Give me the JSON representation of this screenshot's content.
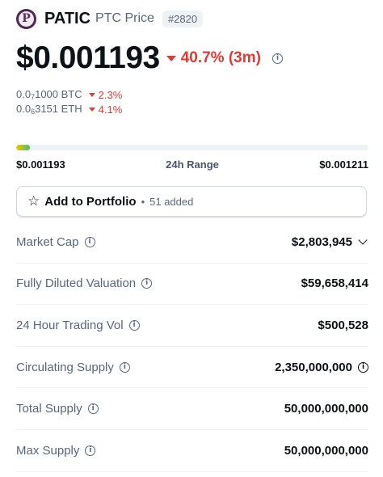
{
  "header": {
    "logo_letter": "P",
    "name": "PATIC",
    "subtitle": "PTC Price",
    "rank": "#2820"
  },
  "price": {
    "value": "$0.001193",
    "change": "40.7% (3m)",
    "change_direction": "down",
    "change_color": "#e53935"
  },
  "sub_prices": [
    {
      "prefix": "0.0",
      "zeros": "7",
      "rest": "1000 BTC",
      "change": "2.3%"
    },
    {
      "prefix": "0.0",
      "zeros": "6",
      "rest": "3151 ETH",
      "change": "4.1%"
    }
  ],
  "range": {
    "low": "$0.001193",
    "label": "24h Range",
    "high": "$0.001211",
    "fill_percent": 4
  },
  "portfolio": {
    "label": "Add to Portfolio",
    "separator": "•",
    "added": "51 added"
  },
  "stats": [
    {
      "label": "Market Cap",
      "value": "$2,803,945",
      "value_icon": "chevron-down-icon"
    },
    {
      "label": "Fully Diluted Valuation",
      "value": "$59,658,414"
    },
    {
      "label": "24 Hour Trading Vol",
      "value": "$500,528"
    },
    {
      "label": "Circulating Supply",
      "value": "2,350,000,000",
      "value_icon": "info-icon"
    },
    {
      "label": "Total Supply",
      "value": "50,000,000,000"
    },
    {
      "label": "Max Supply",
      "value": "50,000,000,000"
    }
  ]
}
